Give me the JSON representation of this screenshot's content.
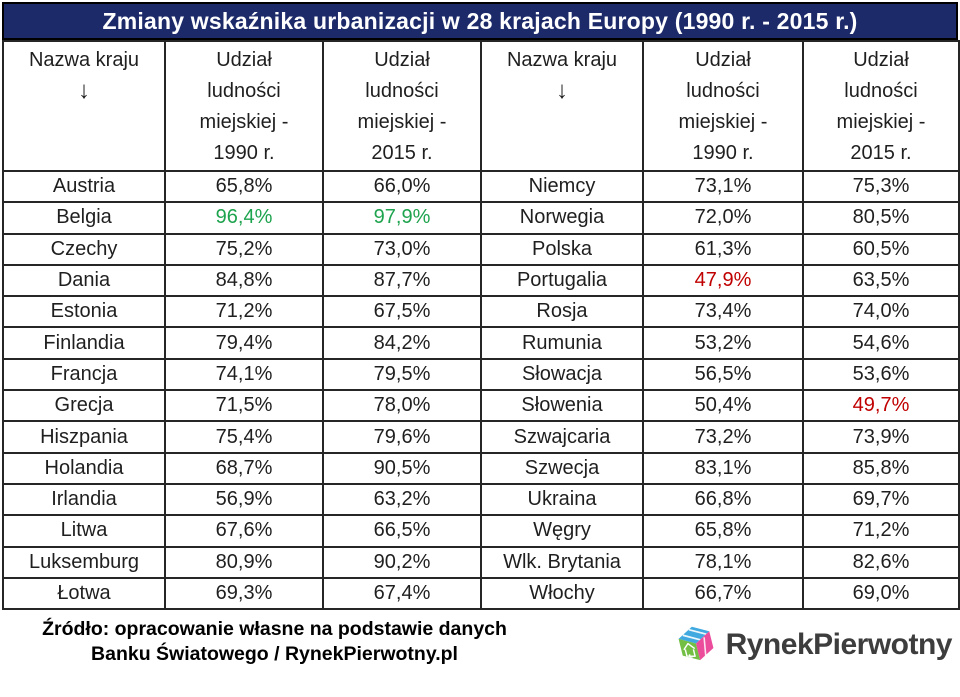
{
  "colors": {
    "navy": "#1c2a6a",
    "green": "#1ea34e",
    "red": "#c00000",
    "border": "#262626",
    "logo_blue": "#3fa9e0",
    "logo_green": "#72bf44",
    "logo_pink": "#ec4c9c"
  },
  "header": {
    "country_label": "Nazwa kraju",
    "arrow": "↓",
    "col_1990": "Udział\nludności\nmiejskiej -\n1990 r.",
    "col_2015": "Udział\nludności\nmiejskiej -\n2015 r."
  },
  "chart_data": {
    "type": "table",
    "title": "Zmiany wskaźnika urbanizacji w 28 krajach Europy (1990 r. - 2015 r.)",
    "columns": [
      "Nazwa kraju",
      "Udział ludności miejskiej - 1990 r.",
      "Udział ludności miejskiej - 2015 r."
    ],
    "value_format": "percent-comma-decimal",
    "groups": [
      {
        "rows": [
          {
            "country": "Austria",
            "v1990": 65.8,
            "v2015": 66.0
          },
          {
            "country": "Belgia",
            "v1990": 96.4,
            "v2015": 97.9,
            "hl1990": "green",
            "hl2015": "green"
          },
          {
            "country": "Czechy",
            "v1990": 75.2,
            "v2015": 73.0
          },
          {
            "country": "Dania",
            "v1990": 84.8,
            "v2015": 87.7
          },
          {
            "country": "Estonia",
            "v1990": 71.2,
            "v2015": 67.5
          },
          {
            "country": "Finlandia",
            "v1990": 79.4,
            "v2015": 84.2
          },
          {
            "country": "Francja",
            "v1990": 74.1,
            "v2015": 79.5
          },
          {
            "country": "Grecja",
            "v1990": 71.5,
            "v2015": 78.0
          },
          {
            "country": "Hiszpania",
            "v1990": 75.4,
            "v2015": 79.6
          },
          {
            "country": "Holandia",
            "v1990": 68.7,
            "v2015": 90.5
          },
          {
            "country": "Irlandia",
            "v1990": 56.9,
            "v2015": 63.2
          },
          {
            "country": "Litwa",
            "v1990": 67.6,
            "v2015": 66.5
          },
          {
            "country": "Luksemburg",
            "v1990": 80.9,
            "v2015": 90.2
          },
          {
            "country": "Łotwa",
            "v1990": 69.3,
            "v2015": 67.4
          }
        ]
      },
      {
        "rows": [
          {
            "country": "Niemcy",
            "v1990": 73.1,
            "v2015": 75.3
          },
          {
            "country": "Norwegia",
            "v1990": 72.0,
            "v2015": 80.5
          },
          {
            "country": "Polska",
            "v1990": 61.3,
            "v2015": 60.5
          },
          {
            "country": "Portugalia",
            "v1990": 47.9,
            "v2015": 63.5,
            "hl1990": "red"
          },
          {
            "country": "Rosja",
            "v1990": 73.4,
            "v2015": 74.0
          },
          {
            "country": "Rumunia",
            "v1990": 53.2,
            "v2015": 54.6
          },
          {
            "country": "Słowacja",
            "v1990": 56.5,
            "v2015": 53.6
          },
          {
            "country": "Słowenia",
            "v1990": 50.4,
            "v2015": 49.7,
            "hl2015": "red"
          },
          {
            "country": "Szwajcaria",
            "v1990": 73.2,
            "v2015": 73.9
          },
          {
            "country": "Szwecja",
            "v1990": 83.1,
            "v2015": 85.8
          },
          {
            "country": "Ukraina",
            "v1990": 66.8,
            "v2015": 69.7
          },
          {
            "country": "Węgry",
            "v1990": 65.8,
            "v2015": 71.2
          },
          {
            "country": "Wlk. Brytania",
            "v1990": 78.1,
            "v2015": 82.6
          },
          {
            "country": "Włochy",
            "v1990": 66.7,
            "v2015": 69.0
          }
        ]
      }
    ]
  },
  "footer": {
    "source_line1": "Źródło: opracowanie własne na podstawie danych",
    "source_line2": "Banku Światowego / RynekPierwotny.pl",
    "logo_text": "RynekPierwotny"
  }
}
